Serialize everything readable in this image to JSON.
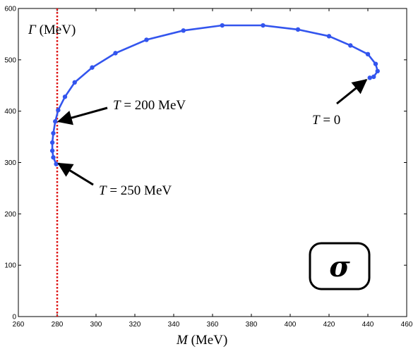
{
  "chart_data": {
    "type": "line",
    "title": "",
    "xlabel": "M (MeV)",
    "ylabel": "Γ (MeV)",
    "xlim": [
      260,
      460
    ],
    "ylim": [
      0,
      600
    ],
    "x_ticks": [
      260,
      280,
      300,
      320,
      340,
      360,
      380,
      400,
      420,
      440,
      460
    ],
    "y_ticks": [
      0,
      100,
      200,
      300,
      400,
      500,
      600
    ],
    "grid": false,
    "series": [
      {
        "color": "#3355ee",
        "marker": "dot",
        "points": [
          [
            441,
            465
          ],
          [
            443,
            467
          ],
          [
            445,
            478
          ],
          [
            444,
            492
          ],
          [
            440,
            511
          ],
          [
            431,
            528
          ],
          [
            420,
            546
          ],
          [
            404,
            559
          ],
          [
            386,
            567
          ],
          [
            365,
            567
          ],
          [
            345,
            557
          ],
          [
            326,
            539
          ],
          [
            310,
            513
          ],
          [
            298,
            485
          ],
          [
            289,
            456
          ],
          [
            284,
            428
          ],
          [
            280.5,
            402
          ],
          [
            279,
            380
          ],
          [
            278,
            357
          ],
          [
            277.5,
            339
          ],
          [
            277.5,
            323
          ],
          [
            278,
            310
          ],
          [
            279.5,
            297
          ]
        ]
      }
    ],
    "reference_lines": [
      {
        "orientation": "vertical",
        "x": 280,
        "color": "#dd1111",
        "style": "dotted"
      }
    ],
    "annotations": [
      {
        "text": "T = 200 MeV",
        "target": [
          280,
          380
        ]
      },
      {
        "text": "T = 250 MeV",
        "target": [
          280,
          298
        ]
      },
      {
        "text": "T = 0",
        "target": [
          441,
          465
        ]
      }
    ],
    "badge": "σ"
  }
}
